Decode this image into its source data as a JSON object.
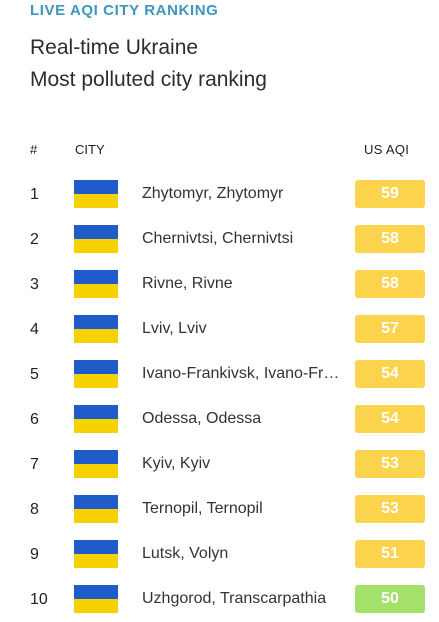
{
  "header": {
    "kicker": "LIVE AQI CITY RANKING",
    "title_line1": "Real-time Ukraine",
    "title_line2": "Most polluted city ranking"
  },
  "table": {
    "columns": {
      "rank": "#",
      "city": "CITY",
      "aqi": "US AQI"
    },
    "rows": [
      {
        "rank": "1",
        "city": "Zhytomyr, Zhytomyr",
        "aqi": "59",
        "aqi_color": "#fcd34d",
        "flag_icon": "ukraine-flag-icon"
      },
      {
        "rank": "2",
        "city": "Chernivtsi, Chernivtsi",
        "aqi": "58",
        "aqi_color": "#fcd34d",
        "flag_icon": "ukraine-flag-icon"
      },
      {
        "rank": "3",
        "city": "Rivne, Rivne",
        "aqi": "58",
        "aqi_color": "#fcd34d",
        "flag_icon": "ukraine-flag-icon"
      },
      {
        "rank": "4",
        "city": "Lviv, Lviv",
        "aqi": "57",
        "aqi_color": "#fcd34d",
        "flag_icon": "ukraine-flag-icon"
      },
      {
        "rank": "5",
        "city": "Ivano-Frankivsk, Ivano-Frankivsk",
        "aqi": "54",
        "aqi_color": "#fcd34d",
        "flag_icon": "ukraine-flag-icon"
      },
      {
        "rank": "6",
        "city": "Odessa, Odessa",
        "aqi": "54",
        "aqi_color": "#fcd34d",
        "flag_icon": "ukraine-flag-icon"
      },
      {
        "rank": "7",
        "city": "Kyiv, Kyiv",
        "aqi": "53",
        "aqi_color": "#fcd34d",
        "flag_icon": "ukraine-flag-icon"
      },
      {
        "rank": "8",
        "city": "Ternopil, Ternopil",
        "aqi": "53",
        "aqi_color": "#fcd34d",
        "flag_icon": "ukraine-flag-icon"
      },
      {
        "rank": "9",
        "city": "Lutsk, Volyn",
        "aqi": "51",
        "aqi_color": "#fcd34d",
        "flag_icon": "ukraine-flag-icon"
      },
      {
        "rank": "10",
        "city": "Uzhgorod, Transcarpathia",
        "aqi": "50",
        "aqi_color": "#a3e16a",
        "flag_icon": "ukraine-flag-icon"
      }
    ]
  },
  "colors": {
    "kicker": "#3e95c2",
    "flag_blue": "#1f5cc9",
    "flag_yellow": "#f6d100",
    "aqi_moderate": "#fcd34d",
    "aqi_good": "#a3e16a"
  }
}
